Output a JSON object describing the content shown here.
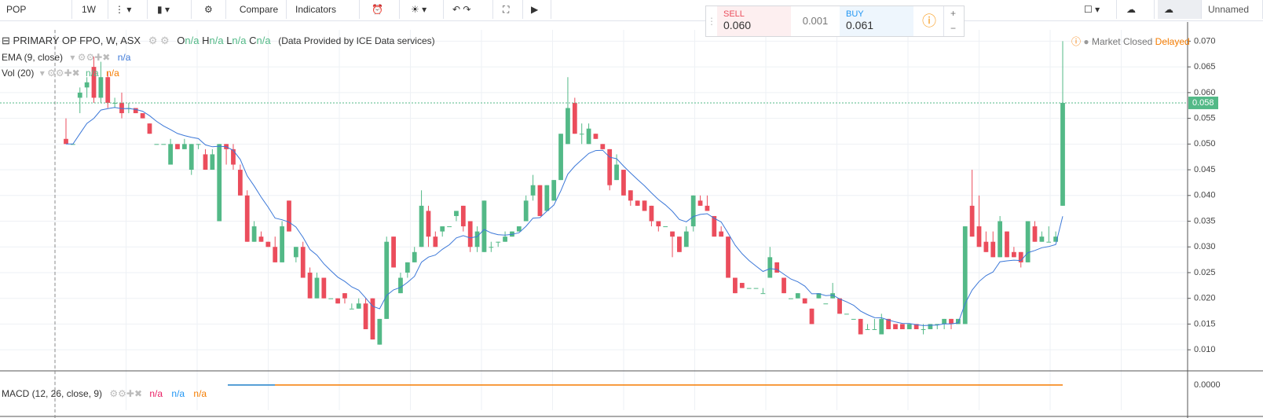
{
  "toolbar": {
    "symbol": "POP",
    "interval": "1W",
    "compare": "Compare",
    "indicators": "Indicators",
    "layout_name": "Unnamed"
  },
  "trade": {
    "sell_label": "SELL",
    "sell_price": "0.060",
    "spread": "0.001",
    "buy_label": "BUY",
    "buy_price": "0.061"
  },
  "legend": {
    "title": "PRIMARY OP FPO, W, ASX",
    "o": "O",
    "h": "H",
    "l": "L",
    "c": "C",
    "ohlc_value": "n/a",
    "provider": "(Data Provided by ICE Data services)",
    "ema": "EMA (9, close)",
    "ema_value": "n/a",
    "vol": "Vol (20)",
    "vol_value_1": "n/a",
    "vol_value_2": "n/a",
    "status": "Market Closed",
    "delayed": "Delayed"
  },
  "macd": {
    "label": "MACD (12, 26, close, 9)",
    "value_1": "n/a",
    "value_2": "n/a",
    "value_3": "n/a",
    "axis_label": "0.0000"
  },
  "chart_data": {
    "type": "candlestick",
    "up_color": "#53b987",
    "down_color": "#eb4d5c",
    "ema_color": "#3c78d8",
    "grid": true,
    "ylim": [
      0.0059,
      0.0722
    ],
    "yticks": [
      {
        "value": 0.01,
        "label": "0.010"
      },
      {
        "value": 0.015,
        "label": "0.015"
      },
      {
        "value": 0.02,
        "label": "0.020"
      },
      {
        "value": 0.025,
        "label": "0.025"
      },
      {
        "value": 0.03,
        "label": "0.030"
      },
      {
        "value": 0.035,
        "label": "0.035"
      },
      {
        "value": 0.04,
        "label": "0.040"
      },
      {
        "value": 0.045,
        "label": "0.045"
      },
      {
        "value": 0.05,
        "label": "0.050"
      },
      {
        "value": 0.055,
        "label": "0.055"
      },
      {
        "value": 0.06,
        "label": "0.060"
      },
      {
        "value": 0.065,
        "label": "0.065"
      },
      {
        "value": 0.07,
        "label": "0.070"
      }
    ],
    "last_price": {
      "value": 0.058,
      "label": "0.058"
    },
    "candles": [
      [
        0.051,
        0.055,
        0.05,
        0.05
      ],
      [
        0.05,
        0.05,
        0.05,
        0.05
      ],
      [
        0.059,
        0.061,
        0.056,
        0.06
      ],
      [
        0.061,
        0.063,
        0.059,
        0.062
      ],
      [
        0.065,
        0.067,
        0.058,
        0.059
      ],
      [
        0.059,
        0.066,
        0.058,
        0.063
      ],
      [
        0.063,
        0.064,
        0.057,
        0.058
      ],
      [
        0.058,
        0.059,
        0.057,
        0.058
      ],
      [
        0.058,
        0.06,
        0.055,
        0.056
      ],
      [
        0.057,
        0.058,
        0.056,
        0.057
      ],
      [
        0.057,
        0.057,
        0.056,
        0.056
      ],
      [
        0.056,
        0.056,
        0.055,
        0.055
      ],
      [
        0.054,
        0.054,
        0.052,
        0.052
      ],
      [
        0.05,
        0.05,
        0.05,
        0.05
      ],
      [
        0.05,
        0.05,
        0.05,
        0.05
      ],
      [
        0.046,
        0.051,
        0.046,
        0.05
      ],
      [
        0.05,
        0.05,
        0.049,
        0.049
      ],
      [
        0.049,
        0.051,
        0.049,
        0.05
      ],
      [
        0.045,
        0.05,
        0.044,
        0.05
      ],
      [
        0.05,
        0.05,
        0.049,
        0.05
      ],
      [
        0.048,
        0.049,
        0.045,
        0.045
      ],
      [
        0.045,
        0.049,
        0.045,
        0.048
      ],
      [
        0.035,
        0.05,
        0.035,
        0.05
      ],
      [
        0.05,
        0.05,
        0.046,
        0.049
      ],
      [
        0.049,
        0.05,
        0.045,
        0.046
      ],
      [
        0.045,
        0.046,
        0.04,
        0.04
      ],
      [
        0.04,
        0.041,
        0.031,
        0.031
      ],
      [
        0.031,
        0.035,
        0.031,
        0.034
      ],
      [
        0.032,
        0.033,
        0.031,
        0.031
      ],
      [
        0.031,
        0.031,
        0.03,
        0.03
      ],
      [
        0.03,
        0.032,
        0.027,
        0.027
      ],
      [
        0.027,
        0.035,
        0.027,
        0.034
      ],
      [
        0.039,
        0.039,
        0.033,
        0.033
      ],
      [
        0.028,
        0.03,
        0.027,
        0.03
      ],
      [
        0.03,
        0.031,
        0.024,
        0.024
      ],
      [
        0.025,
        0.026,
        0.02,
        0.02
      ],
      [
        0.02,
        0.025,
        0.02,
        0.024
      ],
      [
        0.024,
        0.024,
        0.02,
        0.02
      ],
      [
        0.02,
        0.02,
        0.02,
        0.02
      ],
      [
        0.02,
        0.02,
        0.019,
        0.019
      ],
      [
        0.021,
        0.021,
        0.019,
        0.02
      ],
      [
        0.018,
        0.019,
        0.018,
        0.018
      ],
      [
        0.018,
        0.02,
        0.018,
        0.019
      ],
      [
        0.019,
        0.02,
        0.014,
        0.014
      ],
      [
        0.02,
        0.02,
        0.012,
        0.012
      ],
      [
        0.011,
        0.016,
        0.011,
        0.016
      ],
      [
        0.016,
        0.032,
        0.016,
        0.031
      ],
      [
        0.032,
        0.032,
        0.026,
        0.026
      ],
      [
        0.021,
        0.025,
        0.021,
        0.024
      ],
      [
        0.025,
        0.027,
        0.024,
        0.027
      ],
      [
        0.027,
        0.03,
        0.027,
        0.029
      ],
      [
        0.03,
        0.041,
        0.03,
        0.038
      ],
      [
        0.037,
        0.038,
        0.03,
        0.032
      ],
      [
        0.032,
        0.033,
        0.03,
        0.03
      ],
      [
        0.033,
        0.034,
        0.032,
        0.034
      ],
      [
        0.034,
        0.034,
        0.034,
        0.034
      ],
      [
        0.036,
        0.037,
        0.035,
        0.037
      ],
      [
        0.038,
        0.038,
        0.033,
        0.034
      ],
      [
        0.035,
        0.035,
        0.029,
        0.03
      ],
      [
        0.03,
        0.034,
        0.029,
        0.033
      ],
      [
        0.029,
        0.039,
        0.029,
        0.039
      ],
      [
        0.03,
        0.031,
        0.029,
        0.03
      ],
      [
        0.031,
        0.031,
        0.03,
        0.031
      ],
      [
        0.031,
        0.033,
        0.031,
        0.032
      ],
      [
        0.032,
        0.033,
        0.032,
        0.033
      ],
      [
        0.033,
        0.034,
        0.033,
        0.034
      ],
      [
        0.035,
        0.04,
        0.035,
        0.039
      ],
      [
        0.04,
        0.044,
        0.039,
        0.042
      ],
      [
        0.042,
        0.042,
        0.036,
        0.036
      ],
      [
        0.037,
        0.042,
        0.037,
        0.042
      ],
      [
        0.039,
        0.043,
        0.039,
        0.043
      ],
      [
        0.043,
        0.052,
        0.043,
        0.052
      ],
      [
        0.05,
        0.063,
        0.05,
        0.057
      ],
      [
        0.058,
        0.059,
        0.052,
        0.052
      ],
      [
        0.052,
        0.054,
        0.05,
        0.052
      ],
      [
        0.05,
        0.054,
        0.05,
        0.053
      ],
      [
        0.052,
        0.052,
        0.051,
        0.051
      ],
      [
        0.05,
        0.05,
        0.049,
        0.049
      ],
      [
        0.049,
        0.049,
        0.041,
        0.042
      ],
      [
        0.043,
        0.048,
        0.043,
        0.046
      ],
      [
        0.045,
        0.045,
        0.04,
        0.04
      ],
      [
        0.041,
        0.041,
        0.038,
        0.039
      ],
      [
        0.039,
        0.039,
        0.038,
        0.038
      ],
      [
        0.039,
        0.039,
        0.037,
        0.037
      ],
      [
        0.038,
        0.038,
        0.034,
        0.035
      ],
      [
        0.035,
        0.035,
        0.033,
        0.034
      ],
      [
        0.034,
        0.034,
        0.034,
        0.034
      ],
      [
        0.033,
        0.033,
        0.028,
        0.032
      ],
      [
        0.032,
        0.032,
        0.029,
        0.029
      ],
      [
        0.03,
        0.034,
        0.03,
        0.033
      ],
      [
        0.034,
        0.04,
        0.033,
        0.04
      ],
      [
        0.039,
        0.04,
        0.038,
        0.038
      ],
      [
        0.038,
        0.04,
        0.037,
        0.037
      ],
      [
        0.036,
        0.036,
        0.032,
        0.032
      ],
      [
        0.033,
        0.034,
        0.032,
        0.032
      ],
      [
        0.032,
        0.032,
        0.024,
        0.024
      ],
      [
        0.024,
        0.024,
        0.021,
        0.021
      ],
      [
        0.023,
        0.023,
        0.022,
        0.022
      ],
      [
        0.022,
        0.022,
        0.022,
        0.022
      ],
      [
        0.022,
        0.022,
        0.022,
        0.022
      ],
      [
        0.021,
        0.022,
        0.021,
        0.021
      ],
      [
        0.024,
        0.03,
        0.024,
        0.028
      ],
      [
        0.027,
        0.027,
        0.025,
        0.025
      ],
      [
        0.024,
        0.024,
        0.021,
        0.021
      ],
      [
        0.02,
        0.02,
        0.02,
        0.02
      ],
      [
        0.02,
        0.021,
        0.02,
        0.021
      ],
      [
        0.02,
        0.02,
        0.019,
        0.019
      ],
      [
        0.018,
        0.018,
        0.015,
        0.015
      ],
      [
        0.02,
        0.021,
        0.02,
        0.021
      ],
      [
        0.019,
        0.019,
        0.019,
        0.019
      ],
      [
        0.02,
        0.023,
        0.02,
        0.021
      ],
      [
        0.02,
        0.02,
        0.017,
        0.017
      ],
      [
        0.017,
        0.017,
        0.017,
        0.017
      ],
      [
        0.016,
        0.016,
        0.016,
        0.016
      ],
      [
        0.016,
        0.016,
        0.013,
        0.013
      ],
      [
        0.014,
        0.015,
        0.014,
        0.014
      ],
      [
        0.014,
        0.016,
        0.014,
        0.014
      ],
      [
        0.013,
        0.017,
        0.013,
        0.016
      ],
      [
        0.016,
        0.016,
        0.014,
        0.014
      ],
      [
        0.015,
        0.015,
        0.014,
        0.014
      ],
      [
        0.015,
        0.015,
        0.014,
        0.014
      ],
      [
        0.014,
        0.015,
        0.014,
        0.015
      ],
      [
        0.015,
        0.015,
        0.014,
        0.014
      ],
      [
        0.014,
        0.015,
        0.013,
        0.014
      ],
      [
        0.014,
        0.015,
        0.014,
        0.015
      ],
      [
        0.015,
        0.015,
        0.014,
        0.015
      ],
      [
        0.015,
        0.016,
        0.014,
        0.016
      ],
      [
        0.016,
        0.016,
        0.014,
        0.015
      ],
      [
        0.015,
        0.016,
        0.015,
        0.016
      ],
      [
        0.015,
        0.034,
        0.015,
        0.034
      ],
      [
        0.038,
        0.045,
        0.032,
        0.032
      ],
      [
        0.034,
        0.04,
        0.03,
        0.03
      ],
      [
        0.031,
        0.033,
        0.029,
        0.029
      ],
      [
        0.031,
        0.033,
        0.028,
        0.028
      ],
      [
        0.028,
        0.036,
        0.028,
        0.035
      ],
      [
        0.033,
        0.033,
        0.028,
        0.028
      ],
      [
        0.029,
        0.03,
        0.028,
        0.028
      ],
      [
        0.029,
        0.029,
        0.026,
        0.027
      ],
      [
        0.027,
        0.035,
        0.027,
        0.035
      ],
      [
        0.034,
        0.035,
        0.031,
        0.031
      ],
      [
        0.031,
        0.033,
        0.031,
        0.032
      ],
      [
        0.031,
        0.034,
        0.031,
        0.031
      ],
      [
        0.031,
        0.033,
        0.031,
        0.032
      ],
      [
        0.038,
        0.07,
        0.038,
        0.058
      ]
    ]
  }
}
